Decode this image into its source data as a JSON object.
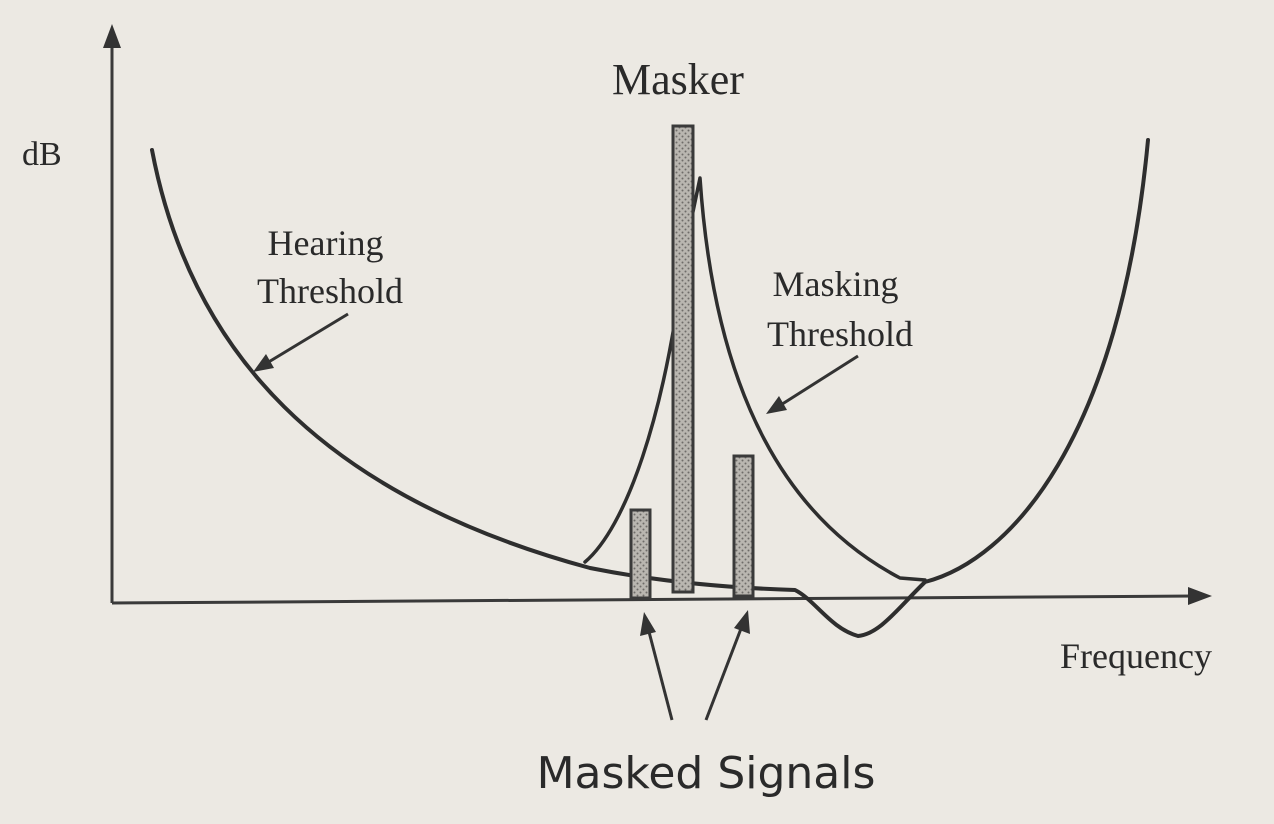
{
  "labels": {
    "y_axis": "dB",
    "x_axis": "Frequency",
    "masker": "Masker",
    "hearing_threshold": [
      "Hearing",
      "Threshold"
    ],
    "masking_threshold": [
      "Masking",
      "Threshold"
    ],
    "masked_signals": "Masked Signals"
  }
}
